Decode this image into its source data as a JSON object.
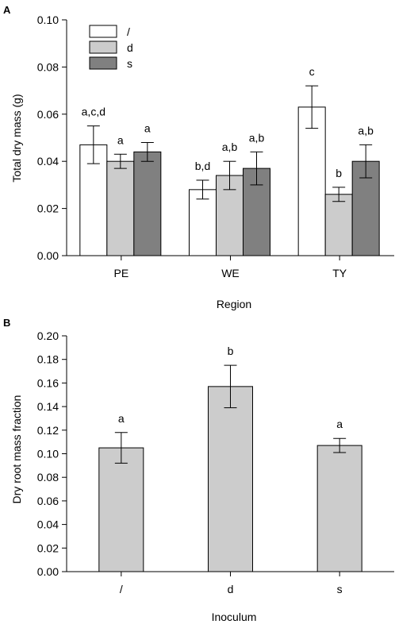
{
  "chart_data": [
    {
      "panel_label": "A",
      "type": "bar",
      "xlabel": "Region",
      "ylabel": "Total dry mass (g)",
      "categories": [
        "PE",
        "WE",
        "TY"
      ],
      "ylim": [
        0,
        0.1
      ],
      "yticks": [
        "0.00",
        "0.02",
        "0.04",
        "0.06",
        "0.08",
        "0.10"
      ],
      "legend_position": "top-left",
      "series": [
        {
          "name": "/",
          "color": "#ffffff",
          "values": [
            0.047,
            0.028,
            0.063
          ],
          "errors": [
            0.008,
            0.004,
            0.009
          ],
          "letters": [
            "a,c,d",
            "b,d",
            "c"
          ]
        },
        {
          "name": "d",
          "color": "#cccccc",
          "values": [
            0.04,
            0.034,
            0.026
          ],
          "errors": [
            0.003,
            0.006,
            0.003
          ],
          "letters": [
            "a",
            "a,b",
            "b"
          ]
        },
        {
          "name": "s",
          "color": "#808080",
          "values": [
            0.044,
            0.037,
            0.04
          ],
          "errors": [
            0.004,
            0.007,
            0.007
          ],
          "letters": [
            "a",
            "a,b",
            "a,b"
          ]
        }
      ]
    },
    {
      "panel_label": "B",
      "type": "bar",
      "xlabel": "Inoculum",
      "ylabel": "Dry root mass fraction",
      "categories": [
        "/",
        "d",
        "s"
      ],
      "ylim": [
        0,
        0.2
      ],
      "yticks": [
        "0.00",
        "0.02",
        "0.04",
        "0.06",
        "0.08",
        "0.10",
        "0.12",
        "0.14",
        "0.16",
        "0.18",
        "0.20"
      ],
      "series": [
        {
          "color": "#cccccc",
          "values": [
            0.105,
            0.157,
            0.107
          ],
          "errors": [
            0.013,
            0.018,
            0.006
          ],
          "letters": [
            "a",
            "b",
            "a"
          ]
        }
      ]
    }
  ]
}
